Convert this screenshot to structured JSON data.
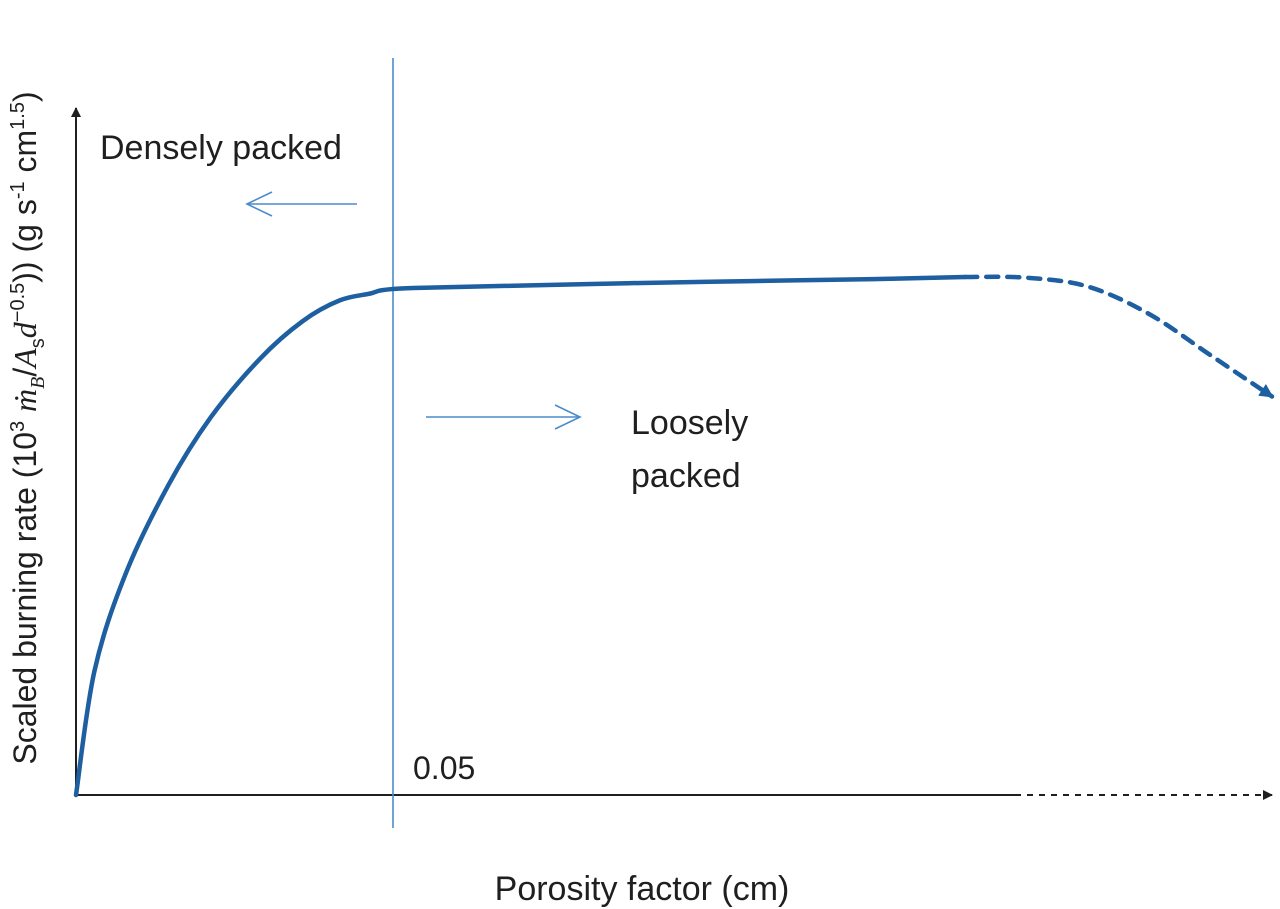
{
  "chart_data": {
    "type": "line",
    "title": "",
    "xlabel": "Porosity factor (cm)",
    "ylabel": {
      "prefix": "Scaled burning rate (10",
      "exp3": "3",
      "mdot": "ṁ",
      "sub_B": "B",
      "slash1": "/",
      "A": "A",
      "sub_s": "s",
      "d": "d",
      "exp_d": "−0.5",
      "units_open": ")) (g s",
      "exp_s": "-1",
      "cm": " cm",
      "exp_cm": "1.5",
      "units_close": ")"
    },
    "tick_labels": [
      "0.05"
    ],
    "vline_x": 0.05,
    "annotations": {
      "dense": "Densely packed",
      "loose_line1": "Loosely",
      "loose_line2": "packed"
    },
    "xlim": [
      0,
      0.195
    ],
    "ylim": [
      0,
      1.0
    ],
    "series": [
      {
        "style": "solid",
        "x": [
          0,
          0.003,
          0.008,
          0.015,
          0.022,
          0.03,
          0.037,
          0.043,
          0.048,
          0.05,
          0.055,
          0.07,
          0.09,
          0.11,
          0.13,
          0.145
        ],
        "y": [
          0,
          0.18,
          0.32,
          0.45,
          0.55,
          0.635,
          0.69,
          0.72,
          0.73,
          0.735,
          0.738,
          0.741,
          0.745,
          0.748,
          0.751,
          0.754
        ]
      },
      {
        "style": "dashed",
        "x": [
          0.145,
          0.155,
          0.165,
          0.175,
          0.185,
          0.195
        ],
        "y": [
          0.754,
          0.753,
          0.74,
          0.7,
          0.64,
          0.58
        ]
      }
    ],
    "x_axis_dashed_from": 0.152
  }
}
